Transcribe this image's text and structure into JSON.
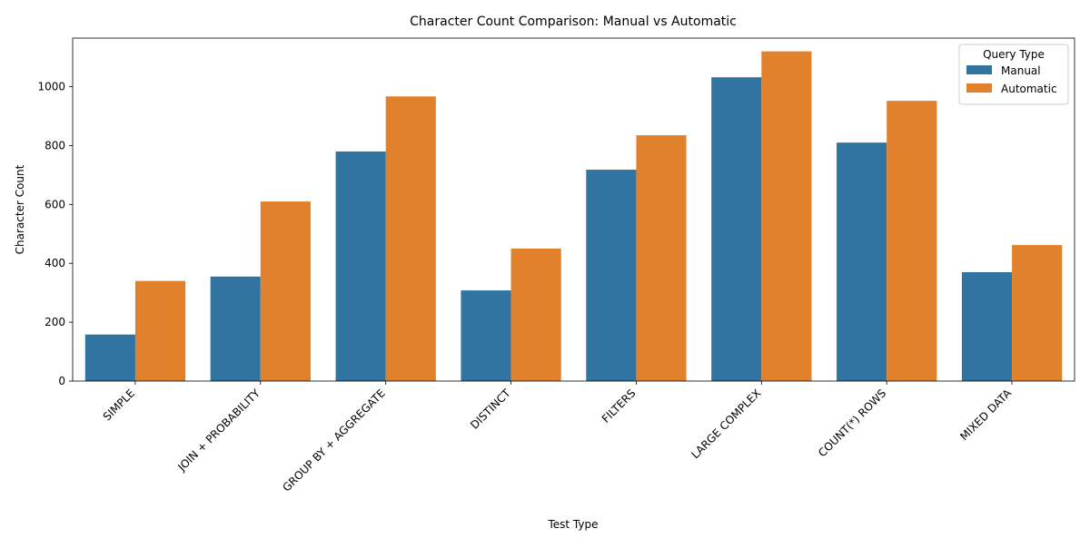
{
  "chart_data": {
    "type": "bar",
    "title": "Character Count Comparison: Manual vs Automatic",
    "xlabel": "Test Type",
    "ylabel": "Character Count",
    "categories": [
      "SIMPLE",
      "JOIN + PROBABILITY",
      "GROUP BY + AGGREGATE",
      "DISTINCT",
      "FILTERS",
      "LARGE COMPLEX",
      "COUNT(*) ROWS",
      "MIXED DATA"
    ],
    "series": [
      {
        "name": "Manual",
        "color": "#3274a1",
        "values": [
          158,
          355,
          780,
          308,
          718,
          1032,
          810,
          370
        ]
      },
      {
        "name": "Automatic",
        "color": "#e1812c",
        "values": [
          340,
          610,
          967,
          450,
          835,
          1120,
          952,
          462
        ]
      }
    ],
    "ylim": [
      0,
      1165
    ],
    "yticks": [
      0,
      200,
      400,
      600,
      800,
      1000
    ],
    "legend": {
      "title": "Query Type",
      "placement": "top-right"
    },
    "grid": false
  }
}
